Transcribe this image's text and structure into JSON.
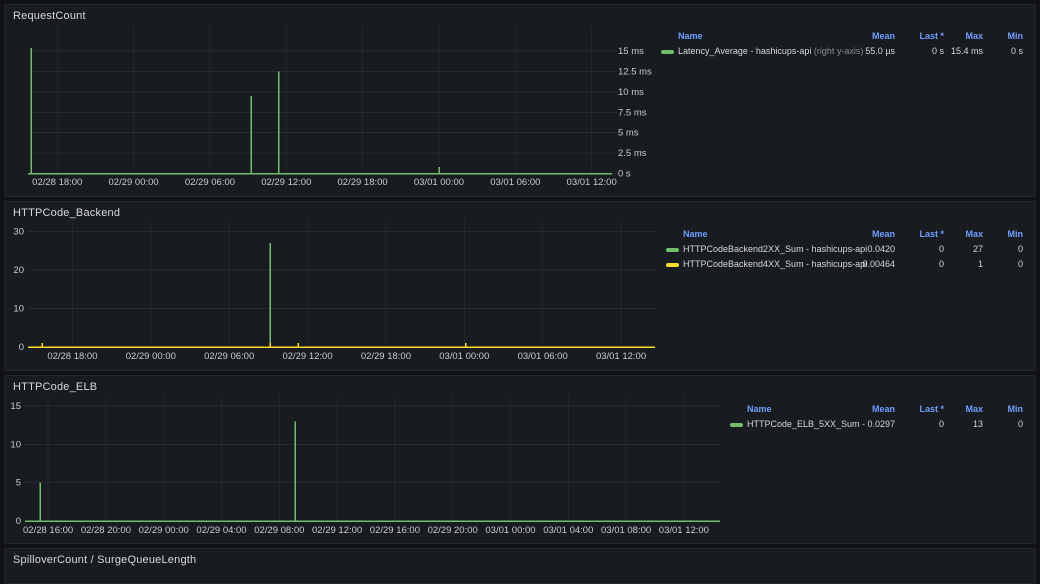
{
  "colors": {
    "green": "#73bf69",
    "yellow": "#fade2a",
    "legend_header": "#6e9fff",
    "panel_background": "#181b1f",
    "page_background": "#111217"
  },
  "legend_columns": [
    "Name",
    "Mean",
    "Last *",
    "Max",
    "Min"
  ],
  "panels": [
    {
      "title": "RequestCount",
      "legend_rows": [
        {
          "name": "Latency_Average - hashicups-api",
          "suffix": "(right y-axis)",
          "color": "#73bf69",
          "mean": "55.0 µs",
          "last": "0 s",
          "max": "15.4 ms",
          "min": "0 s"
        }
      ],
      "chart_data": {
        "type": "line",
        "title": "RequestCount",
        "x_unit": "hours since 02/28 00:00",
        "x_range": [
          15.7,
          61.6
        ],
        "y_axis_side": "right",
        "y_range": [
          0,
          17.6
        ],
        "y_ticks": [
          {
            "v": 0,
            "label": "0 s"
          },
          {
            "v": 2.5,
            "label": "2.5 ms"
          },
          {
            "v": 5,
            "label": "5 ms"
          },
          {
            "v": 7.5,
            "label": "7.5 ms"
          },
          {
            "v": 10,
            "label": "10 ms"
          },
          {
            "v": 12.5,
            "label": "12.5 ms"
          },
          {
            "v": 15,
            "label": "15 ms"
          }
        ],
        "x_ticks": [
          {
            "t": 18,
            "label": "02/28 18:00"
          },
          {
            "t": 24,
            "label": "02/29 00:00"
          },
          {
            "t": 30,
            "label": "02/29 06:00"
          },
          {
            "t": 36,
            "label": "02/29 12:00"
          },
          {
            "t": 42,
            "label": "02/29 18:00"
          },
          {
            "t": 48,
            "label": "03/01 00:00"
          },
          {
            "t": 54,
            "label": "03/01 06:00"
          },
          {
            "t": 60,
            "label": "03/01 12:00"
          }
        ],
        "series": [
          {
            "name": "Latency_Average - hashicups-api",
            "color": "#73bf69",
            "baseline": 0,
            "spikes": [
              {
                "t": 15.96,
                "v": 15.4
              },
              {
                "t": 33.25,
                "v": 9.5
              },
              {
                "t": 35.4,
                "v": 12.5
              },
              {
                "t": 48.0,
                "v": 0.8
              }
            ]
          }
        ]
      }
    },
    {
      "title": "HTTPCode_Backend",
      "legend_rows": [
        {
          "name": "HTTPCodeBackend2XX_Sum - hashicups-api",
          "suffix": "",
          "color": "#73bf69",
          "mean": "0.0420",
          "last": "0",
          "max": "27",
          "min": "0"
        },
        {
          "name": "HTTPCodeBackend4XX_Sum - hashicups-api",
          "suffix": "",
          "color": "#fade2a",
          "mean": "0.00464",
          "last": "0",
          "max": "1",
          "min": "0"
        }
      ],
      "chart_data": {
        "type": "line",
        "title": "HTTPCode_Backend",
        "x_unit": "hours since 02/28 00:00",
        "x_range": [
          14.6,
          62.6
        ],
        "y_axis_side": "left",
        "y_range": [
          0,
          32
        ],
        "y_ticks": [
          {
            "v": 0,
            "label": "0"
          },
          {
            "v": 10,
            "label": "10"
          },
          {
            "v": 20,
            "label": "20"
          },
          {
            "v": 30,
            "label": "30"
          }
        ],
        "x_ticks": [
          {
            "t": 18,
            "label": "02/28 18:00"
          },
          {
            "t": 24,
            "label": "02/29 00:00"
          },
          {
            "t": 30,
            "label": "02/29 06:00"
          },
          {
            "t": 36,
            "label": "02/29 12:00"
          },
          {
            "t": 42,
            "label": "02/29 18:00"
          },
          {
            "t": 48,
            "label": "03/01 00:00"
          },
          {
            "t": 54,
            "label": "03/01 06:00"
          },
          {
            "t": 60,
            "label": "03/01 12:00"
          }
        ],
        "series": [
          {
            "name": "HTTPCodeBackend2XX_Sum - hashicups-api",
            "color": "#73bf69",
            "baseline": 0,
            "spikes": [
              {
                "t": 33.15,
                "v": 27
              }
            ]
          },
          {
            "name": "HTTPCodeBackend4XX_Sum - hashicups-api",
            "color": "#fade2a",
            "baseline": 0,
            "spikes": [
              {
                "t": 15.7,
                "v": 1
              },
              {
                "t": 33.15,
                "v": 1
              },
              {
                "t": 35.3,
                "v": 1
              },
              {
                "t": 48.1,
                "v": 1
              }
            ]
          }
        ]
      }
    },
    {
      "title": "HTTPCode_ELB",
      "legend_rows": [
        {
          "name": "HTTPCode_ELB_5XX_Sum -",
          "suffix": "",
          "color": "#73bf69",
          "mean": "0.0297",
          "last": "0",
          "max": "13",
          "min": "0"
        }
      ],
      "chart_data": {
        "type": "line",
        "title": "HTTPCode_ELB",
        "x_unit": "hours since 02/28 00:00",
        "x_range": [
          14.4,
          62.5
        ],
        "y_axis_side": "left",
        "y_range": [
          0,
          15.8
        ],
        "y_ticks": [
          {
            "v": 0,
            "label": "0"
          },
          {
            "v": 5,
            "label": "5"
          },
          {
            "v": 10,
            "label": "10"
          },
          {
            "v": 15,
            "label": "15"
          }
        ],
        "x_ticks": [
          {
            "t": 16,
            "label": "02/28 16:00"
          },
          {
            "t": 20,
            "label": "02/28 20:00"
          },
          {
            "t": 24,
            "label": "02/29 00:00"
          },
          {
            "t": 28,
            "label": "02/29 04:00"
          },
          {
            "t": 32,
            "label": "02/29 08:00"
          },
          {
            "t": 36,
            "label": "02/29 12:00"
          },
          {
            "t": 40,
            "label": "02/29 16:00"
          },
          {
            "t": 44,
            "label": "02/29 20:00"
          },
          {
            "t": 48,
            "label": "03/01 00:00"
          },
          {
            "t": 52,
            "label": "03/01 04:00"
          },
          {
            "t": 56,
            "label": "03/01 08:00"
          },
          {
            "t": 60,
            "label": "03/01 12:00"
          }
        ],
        "series": [
          {
            "name": "HTTPCode_ELB_5XX_Sum -",
            "color": "#73bf69",
            "baseline": 0,
            "spikes": [
              {
                "t": 15.45,
                "v": 5
              },
              {
                "t": 33.1,
                "v": 13
              }
            ]
          }
        ]
      }
    },
    {
      "title": "SpilloverCount / SurgeQueueLength",
      "legend_rows": [],
      "chart_data": null
    }
  ]
}
